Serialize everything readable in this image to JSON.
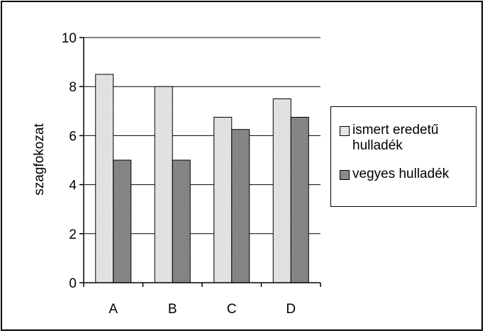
{
  "chart_data": {
    "type": "bar",
    "title": "",
    "xlabel": "",
    "ylabel": "szagfokozat",
    "categories": [
      "A",
      "B",
      "C",
      "D"
    ],
    "yticks": [
      "0",
      "2",
      "4",
      "6",
      "8",
      "10"
    ],
    "ylim": [
      0,
      10
    ],
    "grid": true,
    "legend_position": "right",
    "series": [
      {
        "name": "ismert eredetű hulladék",
        "values": [
          8.5,
          8.0,
          6.75,
          7.5
        ],
        "color": "#d9d9d9"
      },
      {
        "name": "vegyes hulladék",
        "values": [
          5.0,
          5.0,
          6.25,
          6.75
        ],
        "color": "#7f7f7f"
      }
    ]
  }
}
